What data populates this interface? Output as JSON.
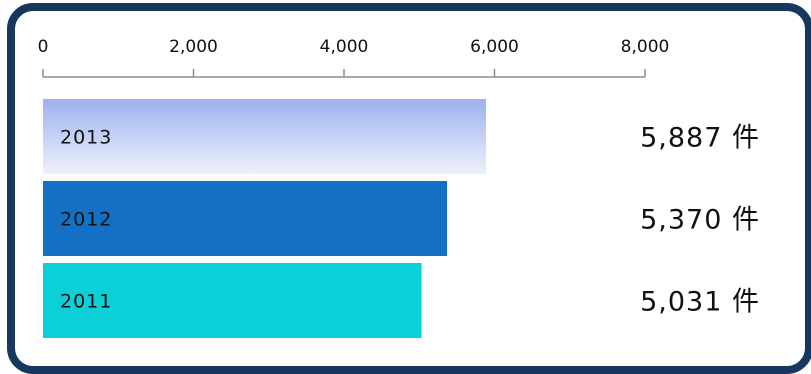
{
  "chart_data": {
    "type": "bar",
    "orientation": "horizontal",
    "categories": [
      "2013",
      "2012",
      "2011"
    ],
    "values": [
      5887,
      5370,
      5031
    ],
    "value_labels": [
      "5,887 件",
      "5,370 件",
      "5,031 件"
    ],
    "bar_colors": [
      "#9DB0F0",
      "#1470C4",
      "#0BD0D8"
    ],
    "xlim": [
      0,
      8000
    ],
    "xticks": [
      0,
      2000,
      4000,
      6000,
      8000
    ],
    "xtick_labels": [
      "0",
      "2,000",
      "4,000",
      "6,000",
      "8,000"
    ],
    "axis_position": "top",
    "grid": false,
    "frame_color": "#17375E"
  }
}
